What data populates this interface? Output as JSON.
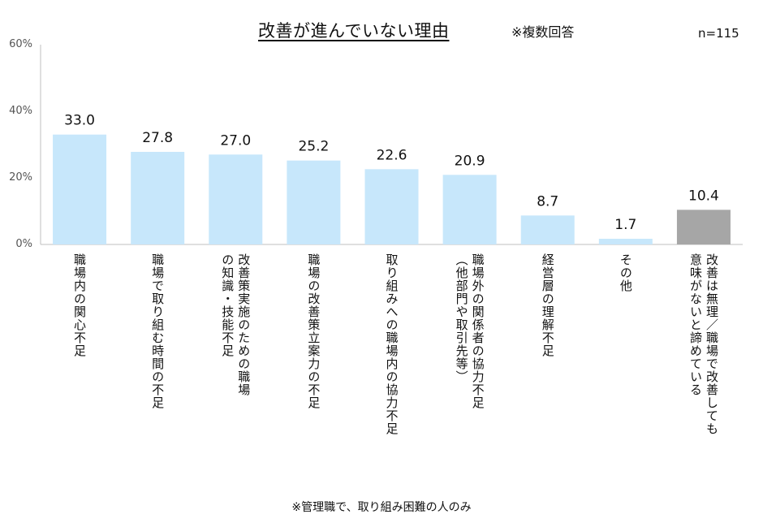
{
  "chart_data": {
    "type": "bar",
    "title": "改善が進んでいない理由",
    "subtitle": "※複数回答",
    "sample_size": "n=115",
    "footnote": "※管理職で、取り組み困難の人のみ",
    "ylim": [
      0,
      60
    ],
    "yticks": [
      "0%",
      "20%",
      "40%",
      "60%"
    ],
    "grid": false,
    "categories": [
      "職場内の関心不足",
      "職場で取り組む時間の不足",
      "改善策実施のための職場\nの知識・技能不足",
      "職場の改善策立案力の不足",
      "取り組みへの職場内の協力不足",
      "職場外の関係者の協力不足\n（他部門や取引先等）",
      "経営層の理解不足",
      "その他",
      "改善は無理／職場で改善しても\n意味がないと諦めている"
    ],
    "values": [
      33.0,
      27.8,
      27.0,
      25.2,
      22.6,
      20.9,
      8.7,
      1.7,
      10.4
    ],
    "value_labels": [
      "33.0",
      "27.8",
      "27.0",
      "25.2",
      "22.6",
      "20.9",
      "8.7",
      "1.7",
      "10.4"
    ],
    "colors": [
      "#c7e7fb",
      "#c7e7fb",
      "#c7e7fb",
      "#c7e7fb",
      "#c7e7fb",
      "#c7e7fb",
      "#c7e7fb",
      "#c7e7fb",
      "#a6a6a6"
    ],
    "axis_color": "#bfbfbf"
  }
}
